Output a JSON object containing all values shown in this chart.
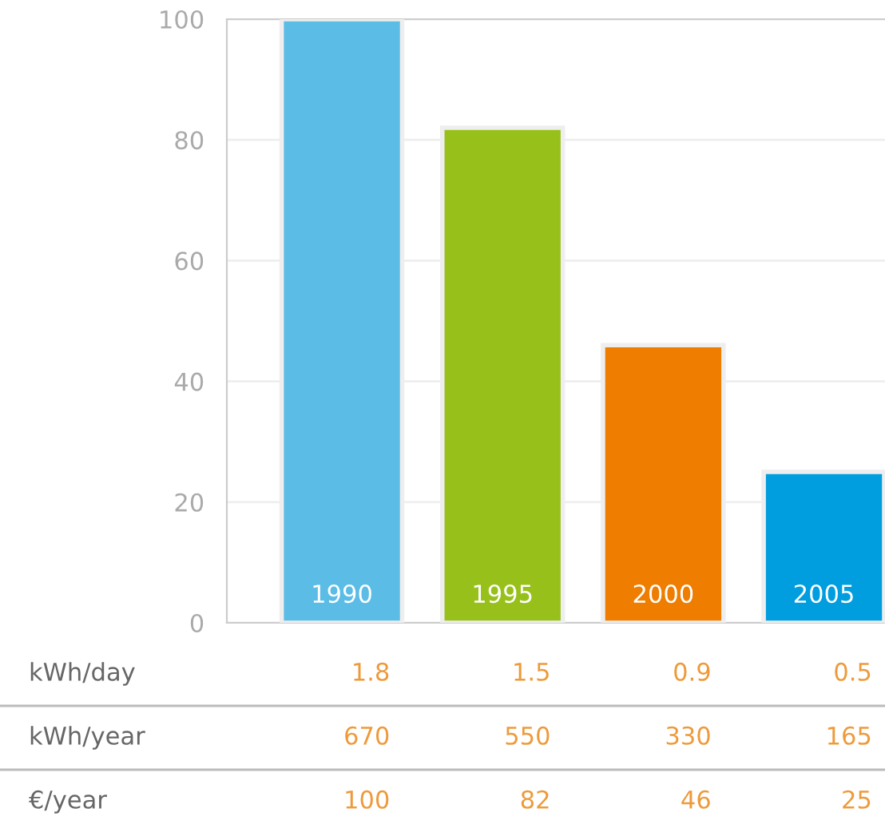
{
  "chart_data": {
    "type": "bar",
    "categories": [
      "1990",
      "1995",
      "2000",
      "2005"
    ],
    "values": [
      100,
      82,
      46,
      25
    ],
    "colors": [
      "#5bbce6",
      "#97c11a",
      "#ee7d00",
      "#009ddf"
    ],
    "ylim": [
      0,
      100
    ],
    "yticks": [
      0,
      20,
      40,
      60,
      80,
      100
    ],
    "grid": "y",
    "data_labels": true,
    "annotations": [
      "kWh/day",
      "1.8",
      "1.5",
      "0.9",
      "0.5",
      "kWh/year",
      "670",
      "550",
      "330",
      "165",
      "€/year"
    ]
  }
}
